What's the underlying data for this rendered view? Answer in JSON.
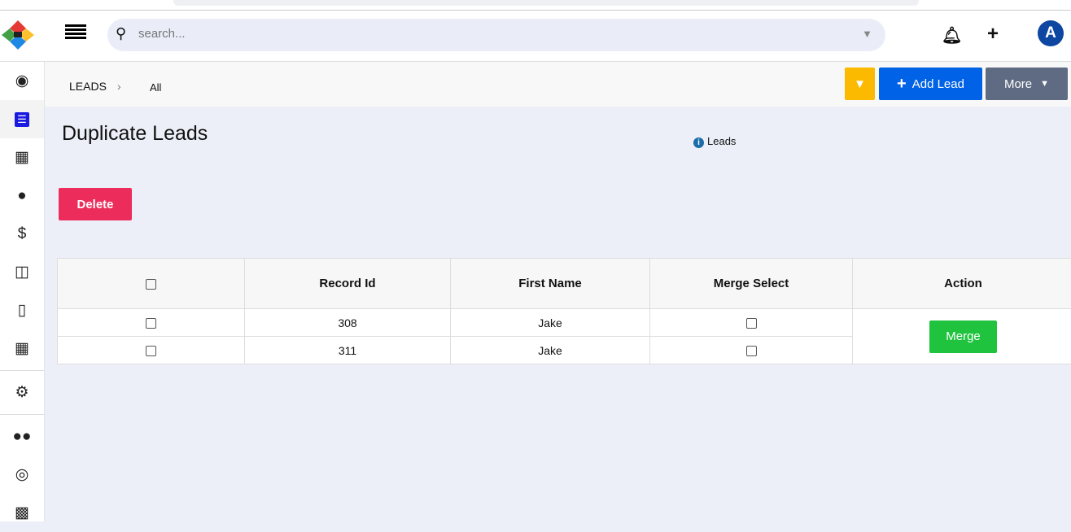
{
  "header": {
    "search_placeholder": "search...",
    "avatar_letter": "A"
  },
  "sidebar": {
    "items": [
      "dashboard",
      "leads",
      "accounts",
      "contacts",
      "deals",
      "products",
      "tickets",
      "calendar",
      "settings",
      "teams",
      "target",
      "warehouse"
    ]
  },
  "breadcrumb": {
    "module": "LEADS",
    "view": "All"
  },
  "toolbar": {
    "add_label": "Add Lead",
    "more_label": "More"
  },
  "page": {
    "title": "Duplicate Leads",
    "info_label": "Leads",
    "delete_label": "Delete"
  },
  "table": {
    "headers": [
      "Record Id",
      "First Name",
      "Merge Select",
      "Action"
    ],
    "rows": [
      {
        "record_id": "308",
        "first_name": "Jake"
      },
      {
        "record_id": "311",
        "first_name": "Jake"
      }
    ],
    "merge_label": "Merge"
  },
  "colors": {
    "accent": "#0062e6",
    "delete": "#ec2d5b",
    "merge": "#20c33e",
    "filter": "#fbb900",
    "more": "#5f6b82"
  }
}
